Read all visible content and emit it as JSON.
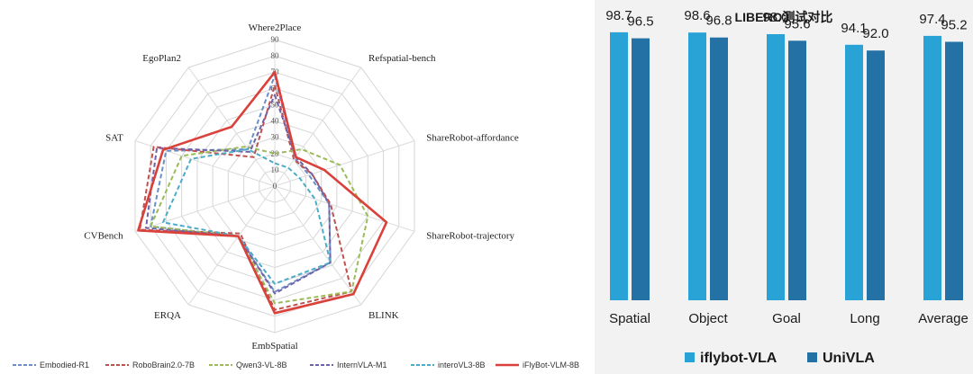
{
  "chart_data": [
    {
      "type": "radar",
      "title": "",
      "axes": [
        "Where2Place",
        "Refspatial-bench",
        "ShareRobot-affordance",
        "ShareRobot-trajectory",
        "BLINK",
        "EmbSpatial",
        "ERQA",
        "CVBench",
        "SAT",
        "EgoPlan2"
      ],
      "ticks": [
        "0",
        "10",
        "20",
        "30",
        "40",
        "50",
        "60",
        "70",
        "80",
        "90"
      ],
      "rmax": 90,
      "grid": true,
      "legend_position": "bottom",
      "series": [
        {
          "name": "Embodied-R1",
          "color": "#6a8fc8",
          "dash": "5,3",
          "width": 2,
          "values": [
            68,
            21,
            22,
            35,
            58,
            65,
            38,
            80,
            70,
            28
          ]
        },
        {
          "name": "RoboBrain2.0-7B",
          "color": "#c0504d",
          "dash": "5,3",
          "width": 2,
          "values": [
            62,
            20,
            24,
            36,
            80,
            76,
            36,
            87,
            78,
            22
          ]
        },
        {
          "name": "Qwen3-VL-8B",
          "color": "#9bbb59",
          "dash": "5,3",
          "width": 2,
          "values": [
            20,
            28,
            42,
            60,
            80,
            72,
            38,
            80,
            60,
            30
          ]
        },
        {
          "name": "InternVLA-M1",
          "color": "#7060a8",
          "dash": "5,3",
          "width": 2,
          "values": [
            56,
            22,
            24,
            35,
            58,
            66,
            38,
            83,
            76,
            26
          ]
        },
        {
          "name": "interoVL3-8B",
          "color": "#4bacc6",
          "dash": "5,3",
          "width": 2,
          "values": [
            14,
            14,
            16,
            26,
            58,
            60,
            38,
            72,
            54,
            28
          ]
        },
        {
          "name": "iFlyBot-VLM-8B",
          "color": "#d9413a",
          "dash": "",
          "width": 2.6,
          "values": [
            70,
            22,
            32,
            72,
            82,
            78,
            38,
            88,
            72,
            45
          ]
        }
      ]
    },
    {
      "type": "bar",
      "title": "LIBERO测试对比",
      "categories": [
        "Spatial",
        "Object",
        "Goal",
        "Long",
        "Average"
      ],
      "ylim": [
        0,
        100
      ],
      "legend_position": "bottom",
      "series": [
        {
          "name": "iflybot-VLA",
          "color": "#29a3d6",
          "values": [
            98.7,
            98.6,
            98.0,
            94.1,
            97.4
          ],
          "labels": [
            "98.7",
            "98.6",
            "98.0",
            "94.1",
            "97.4"
          ]
        },
        {
          "name": "UniVLA",
          "color": "#2471a6",
          "values": [
            96.5,
            96.8,
            95.6,
            92.0,
            95.2
          ],
          "labels": [
            "96.5",
            "96.8",
            "95.6",
            "92.0",
            "95.2"
          ]
        }
      ]
    }
  ]
}
